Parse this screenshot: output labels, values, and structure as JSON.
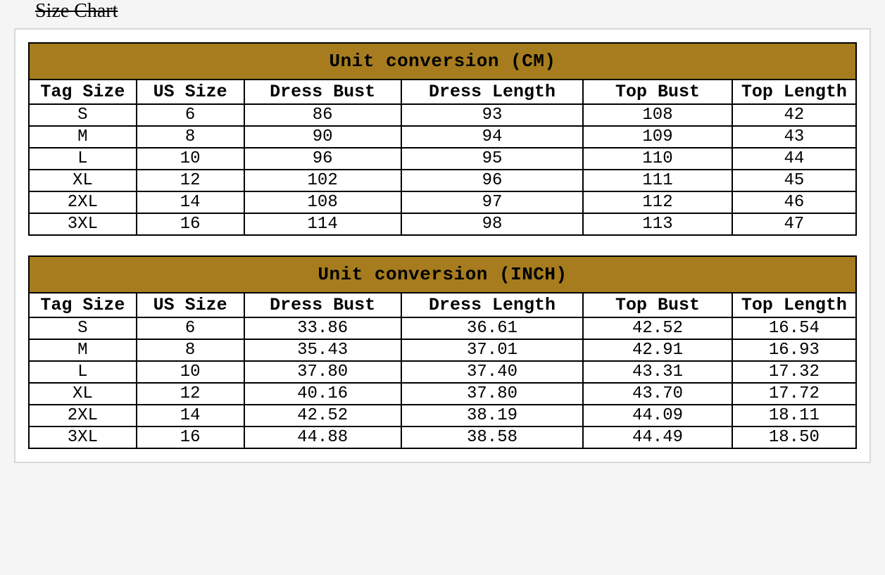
{
  "page_title": "Size Chart",
  "colors": {
    "header_bg": "#a67c1e",
    "border": "#000000",
    "page_bg": "#f5f5f5",
    "container_border": "#d8d8d8",
    "cell_bg": "#ffffff",
    "text": "#000000"
  },
  "typography": {
    "font_family": "Courier New, Courier, monospace",
    "title_font_family": "Georgia, Times New Roman, serif",
    "title_fontsize": 28,
    "table_title_fontsize": 26,
    "header_fontsize": 25,
    "cell_fontsize": 24
  },
  "tables": [
    {
      "title": "Unit conversion (CM)",
      "columns": [
        "Tag Size",
        "US Size",
        "Dress Bust",
        "Dress Length",
        "Top Bust",
        "Top Length"
      ],
      "rows": [
        [
          "S",
          "6",
          "86",
          "93",
          "108",
          "42"
        ],
        [
          "M",
          "8",
          "90",
          "94",
          "109",
          "43"
        ],
        [
          "L",
          "10",
          "96",
          "95",
          "110",
          "44"
        ],
        [
          "XL",
          "12",
          "102",
          "96",
          "111",
          "45"
        ],
        [
          "2XL",
          "14",
          "108",
          "97",
          "112",
          "46"
        ],
        [
          "3XL",
          "16",
          "114",
          "98",
          "113",
          "47"
        ]
      ]
    },
    {
      "title": "Unit conversion (INCH)",
      "columns": [
        "Tag Size",
        "US Size",
        "Dress Bust",
        "Dress Length",
        "Top Bust",
        "Top Length"
      ],
      "rows": [
        [
          "S",
          "6",
          "33.86",
          "36.61",
          "42.52",
          "16.54"
        ],
        [
          "M",
          "8",
          "35.43",
          "37.01",
          "42.91",
          "16.93"
        ],
        [
          "L",
          "10",
          "37.80",
          "37.40",
          "43.31",
          "17.32"
        ],
        [
          "XL",
          "12",
          "40.16",
          "37.80",
          "43.70",
          "17.72"
        ],
        [
          "2XL",
          "14",
          "42.52",
          "38.19",
          "44.09",
          "18.11"
        ],
        [
          "3XL",
          "16",
          "44.88",
          "38.58",
          "44.49",
          "18.50"
        ]
      ]
    }
  ]
}
